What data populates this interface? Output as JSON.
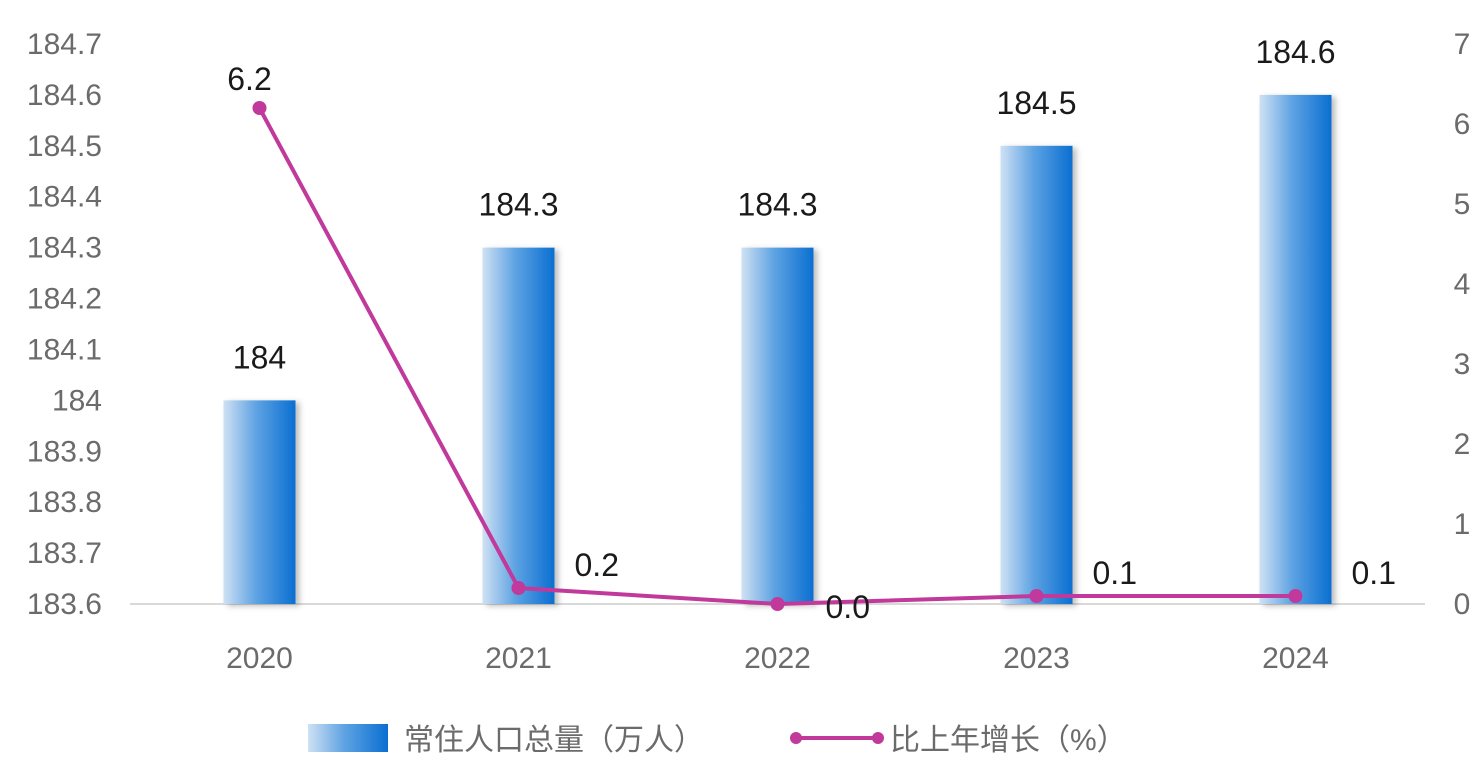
{
  "chart_data": {
    "type": "bar",
    "categories": [
      "2020",
      "2021",
      "2022",
      "2023",
      "2024"
    ],
    "series": [
      {
        "name": "常住人口总量（万人）",
        "type": "bar",
        "axis": "left",
        "values": [
          184,
          184.3,
          184.3,
          184.5,
          184.6
        ],
        "labels": [
          "184",
          "184.3",
          "184.3",
          "184.5",
          "184.6"
        ],
        "color": "#0a6fd1"
      },
      {
        "name": "比上年增长（%）",
        "type": "line",
        "axis": "right",
        "values": [
          6.2,
          0.2,
          0.0,
          0.1,
          0.1
        ],
        "labels": [
          "6.2",
          "0.2",
          "0.0",
          "0.1",
          "0.1"
        ],
        "color": "#c0399b"
      }
    ],
    "y_left": {
      "ylim": [
        183.6,
        184.7
      ],
      "ticks": [
        "184.7",
        "184.6",
        "184.5",
        "184.4",
        "184.3",
        "184.2",
        "184.1",
        "184",
        "183.9",
        "183.8",
        "183.7",
        "183.6"
      ]
    },
    "y_right": {
      "ylim": [
        0,
        7
      ],
      "ticks": [
        "7",
        "6",
        "5",
        "4",
        "3",
        "2",
        "1",
        "0"
      ]
    },
    "grid": false,
    "legend": "bottom-center",
    "title": "",
    "xlabel": "",
    "ylabel": ""
  }
}
